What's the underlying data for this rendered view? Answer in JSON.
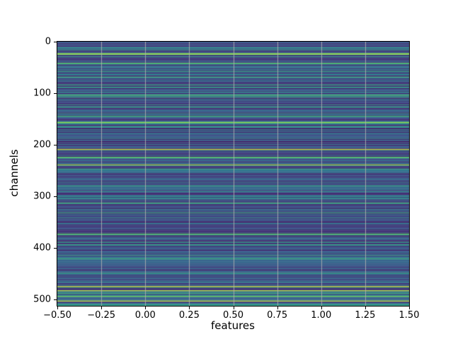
{
  "chart_data": {
    "type": "heatmap",
    "title": "",
    "xlabel": "features",
    "ylabel": "channels",
    "xlim": [
      -0.5,
      1.5
    ],
    "x_tick_values": [
      -0.5,
      -0.25,
      0.0,
      0.25,
      0.5,
      0.75,
      1.0,
      1.25,
      1.5
    ],
    "x_tick_labels": [
      "−0.50",
      "−0.25",
      "0.00",
      "0.25",
      "0.50",
      "0.75",
      "1.00",
      "1.25",
      "1.50"
    ],
    "y_tick_values": [
      0,
      100,
      200,
      300,
      400,
      500
    ],
    "y_tick_labels": [
      "0",
      "100",
      "200",
      "300",
      "400",
      "500"
    ],
    "row_axis_range": [
      0,
      512
    ],
    "y_inverted": true,
    "n_rows": 512,
    "n_cols": 2,
    "colormap": "viridis",
    "colormap_stops": [
      [
        0.0,
        "#440154"
      ],
      [
        0.25,
        "#3b528b"
      ],
      [
        0.5,
        "#21918c"
      ],
      [
        0.75,
        "#5ec962"
      ],
      [
        1.0,
        "#fde725"
      ]
    ],
    "grid": {
      "axis": "x",
      "color": "#b0b0b0",
      "opacity": 0.85,
      "linewidth": 1
    },
    "legend": "none",
    "base_value_range": [
      0.05,
      0.4
    ],
    "secondary_fraction": 0.1,
    "secondary_range": [
      0.4,
      0.62
    ],
    "random_seed": 11,
    "bright_rows": [
      [
        11,
        0.55
      ],
      [
        23,
        0.97
      ],
      [
        41,
        0.75
      ],
      [
        57,
        0.6
      ],
      [
        68,
        0.65
      ],
      [
        83,
        0.62
      ],
      [
        88,
        0.58
      ],
      [
        103,
        0.7
      ],
      [
        126,
        0.6
      ],
      [
        144,
        0.65
      ],
      [
        156,
        0.88
      ],
      [
        164,
        0.6
      ],
      [
        208,
        0.96
      ],
      [
        224,
        0.78
      ],
      [
        238,
        0.9
      ],
      [
        279,
        0.6
      ],
      [
        312,
        0.66
      ],
      [
        331,
        0.62
      ],
      [
        372,
        0.74
      ],
      [
        393,
        0.6
      ],
      [
        420,
        0.64
      ],
      [
        448,
        0.6
      ],
      [
        474,
        0.95
      ],
      [
        482,
        0.93
      ],
      [
        493,
        0.8
      ],
      [
        502,
        0.98
      ]
    ]
  },
  "axes_style": {
    "spine_color": "#000000",
    "tick_color": "#000000",
    "label_color": "#000000",
    "background": "#ffffff"
  }
}
